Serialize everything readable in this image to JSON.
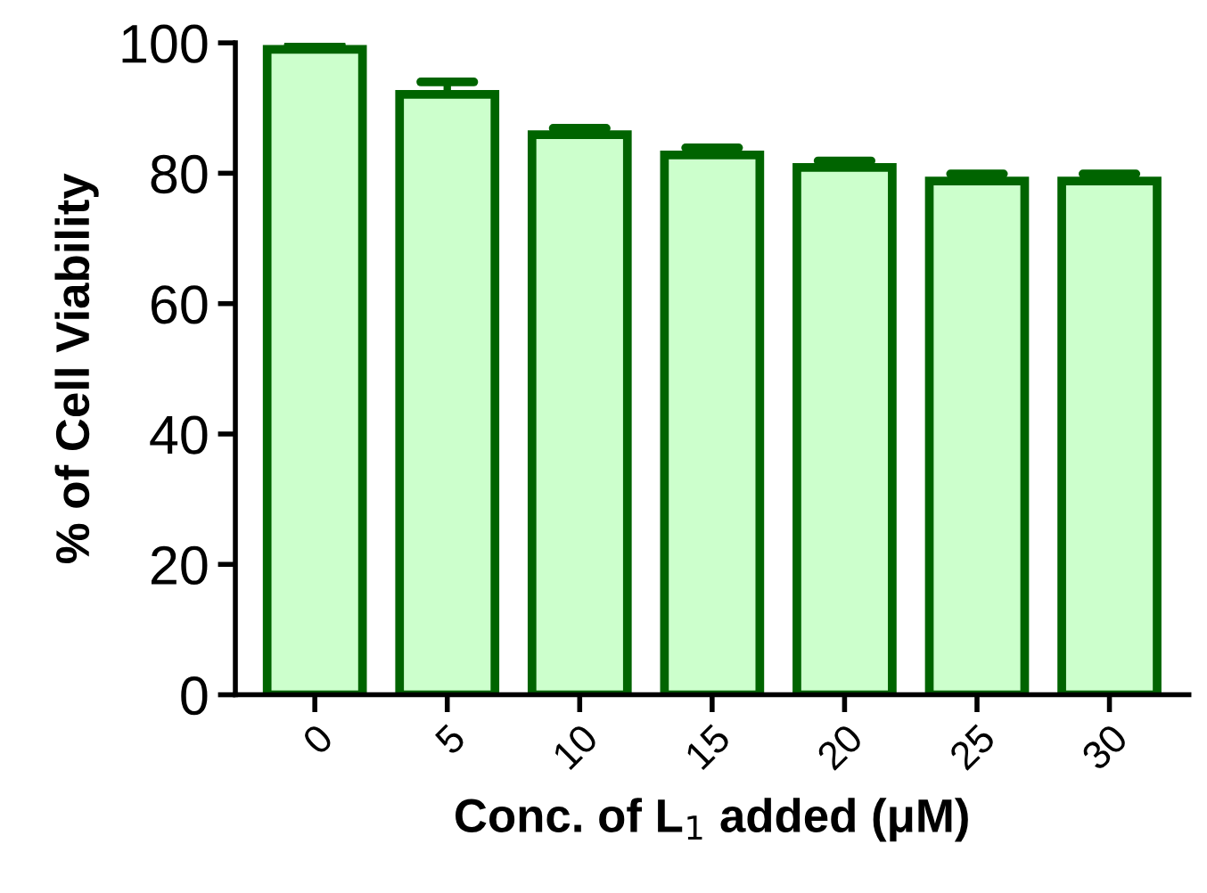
{
  "chart_data": {
    "type": "bar",
    "xlabel": "Conc. of L$_{1}$ added (μM)",
    "ylabel": "% of Cell Viability",
    "categories": [
      "0",
      "5",
      "10",
      "15",
      "20",
      "25",
      "30"
    ],
    "values": [
      99.0,
      92.1,
      85.9,
      82.8,
      80.9,
      78.8,
      78.8
    ],
    "errors": [
      [
        99.0,
        99.7
      ],
      [
        92.1,
        94.0
      ],
      [
        85.9,
        86.9
      ],
      [
        82.8,
        83.9
      ],
      [
        80.9,
        81.9
      ],
      [
        78.8,
        79.9
      ],
      [
        78.8,
        79.9
      ]
    ],
    "color": "#ccffcc",
    "ylim": [
      0,
      100
    ],
    "yticks": [
      0,
      20,
      40,
      60,
      80,
      100
    ],
    "grid": false,
    "legend": false
  }
}
